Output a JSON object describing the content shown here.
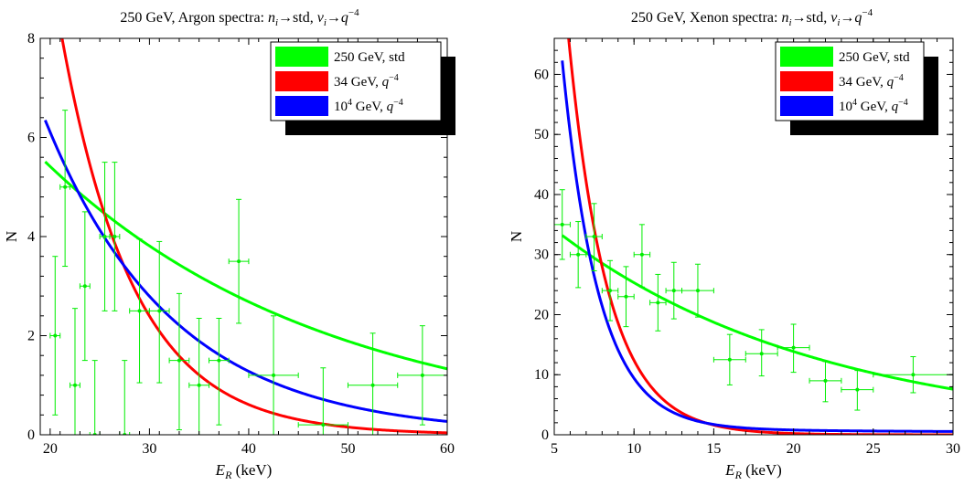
{
  "chart_data": [
    {
      "type": "scatter",
      "title_parts": [
        "250 GeV, Argon spectra: ",
        "n",
        "i",
        "→std, ",
        "ν",
        "i",
        "→",
        "q",
        "−4"
      ],
      "xlabel_main": "E",
      "xlabel_sub": "R",
      "xlabel_unit": " (keV)",
      "ylabel": "N",
      "xlim": [
        19,
        60
      ],
      "ylim": [
        0,
        8
      ],
      "xticks": [
        20,
        30,
        40,
        50,
        60
      ],
      "yticks": [
        0,
        2,
        4,
        6,
        8
      ],
      "legend_position": "top-right",
      "series": [
        {
          "name": "250 GeV, std",
          "name_html": [
            "250 GeV, std",
            "",
            "",
            ""
          ],
          "color": "#00ff00",
          "model": "exp",
          "amp": 5.51,
          "x0": 19.5,
          "decay": 28.5,
          "xmin": 19.5,
          "xmax": 60
        },
        {
          "name": "34 GeV, q−4",
          "name_html": [
            "34 GeV, ",
            "q",
            "−4",
            ""
          ],
          "color": "#ff0000",
          "model": "exp",
          "amp": 8.0,
          "x0": 21.2,
          "decay": 7.3,
          "xmin": 21.2,
          "xmax": 60
        },
        {
          "name": "10⁴ GeV, q−4",
          "name_html": [
            "10",
            "4",
            " GeV, ",
            "q−4"
          ],
          "color": "#0000ff",
          "model": "exp",
          "amp": 6.35,
          "x0": 19.5,
          "decay": 12.8,
          "xmin": 19.5,
          "xmax": 60
        }
      ],
      "points": [
        {
          "x": 20.5,
          "y": 2.0,
          "xerr": 0.5,
          "ylo": 0.4,
          "yhi": 3.6
        },
        {
          "x": 21.5,
          "y": 5.0,
          "xerr": 0.5,
          "ylo": 3.4,
          "yhi": 6.55
        },
        {
          "x": 22.5,
          "y": 1.0,
          "xerr": 0.5,
          "ylo": 0.0,
          "yhi": 2.55
        },
        {
          "x": 23.5,
          "y": 3.0,
          "xerr": 0.5,
          "ylo": 1.5,
          "yhi": 4.5
        },
        {
          "x": 24.5,
          "y": 0.0,
          "xerr": 0.5,
          "ylo": 0.0,
          "yhi": 1.5
        },
        {
          "x": 25.5,
          "y": 4.0,
          "xerr": 0.5,
          "ylo": 2.5,
          "yhi": 5.5
        },
        {
          "x": 26.5,
          "y": 4.0,
          "xerr": 0.5,
          "ylo": 2.5,
          "yhi": 5.5
        },
        {
          "x": 27.5,
          "y": 0.0,
          "xerr": 0.5,
          "ylo": 0.0,
          "yhi": 1.5
        },
        {
          "x": 29.0,
          "y": 2.5,
          "xerr": 1.0,
          "ylo": 1.05,
          "yhi": 3.95
        },
        {
          "x": 31.0,
          "y": 2.5,
          "xerr": 1.0,
          "ylo": 1.05,
          "yhi": 3.9
        },
        {
          "x": 33.0,
          "y": 1.5,
          "xerr": 1.0,
          "ylo": 0.1,
          "yhi": 2.85
        },
        {
          "x": 35.0,
          "y": 1.0,
          "xerr": 1.0,
          "ylo": 0.0,
          "yhi": 2.35
        },
        {
          "x": 37.0,
          "y": 1.5,
          "xerr": 1.0,
          "ylo": 0.2,
          "yhi": 2.35
        },
        {
          "x": 39.0,
          "y": 3.5,
          "xerr": 1.0,
          "ylo": 2.25,
          "yhi": 4.75
        },
        {
          "x": 42.5,
          "y": 1.2,
          "xerr": 2.5,
          "ylo": 0.0,
          "yhi": 2.4
        },
        {
          "x": 47.5,
          "y": 0.2,
          "xerr": 2.5,
          "ylo": 0.0,
          "yhi": 1.35
        },
        {
          "x": 52.5,
          "y": 1.0,
          "xerr": 2.5,
          "ylo": 0.0,
          "yhi": 2.05
        },
        {
          "x": 57.5,
          "y": 1.2,
          "xerr": 2.5,
          "ylo": 0.2,
          "yhi": 2.2
        }
      ]
    },
    {
      "type": "scatter",
      "title_parts": [
        "250 GeV, Xenon spectra: ",
        "n",
        "i",
        "→std, ",
        "ν",
        "i",
        "→",
        "q",
        "−4"
      ],
      "xlabel_main": "E",
      "xlabel_sub": "R",
      "xlabel_unit": " (keV)",
      "ylabel": "N",
      "xlim": [
        5,
        30
      ],
      "ylim": [
        0,
        66
      ],
      "xticks": [
        5,
        10,
        15,
        20,
        25,
        30
      ],
      "yticks": [
        0,
        10,
        20,
        30,
        40,
        50,
        60
      ],
      "legend_position": "top-right",
      "series": [
        {
          "name": "250 GeV, std",
          "name_html": [
            "250 GeV, std",
            "",
            "",
            ""
          ],
          "color": "#00ff00",
          "model": "exp",
          "amp": 33.2,
          "x0": 5.5,
          "decay": 16.6,
          "xmin": 5.5,
          "xmax": 30
        },
        {
          "name": "34 GeV, q−4",
          "name_html": [
            "34 GeV, ",
            "q",
            "−4",
            ""
          ],
          "color": "#ff0000",
          "model": "exp",
          "amp": 66.0,
          "x0": 5.9,
          "decay": 2.45,
          "xmin": 5.9,
          "xmax": 30
        },
        {
          "name": "10⁴ GeV, q−4",
          "name_html": [
            "10",
            "4",
            " GeV, ",
            "q−4"
          ],
          "color": "#0000ff",
          "model": "exp",
          "amp": 62.3,
          "x0": 5.5,
          "decay": 2.3,
          "floor": 1.0,
          "ftail": 0.0,
          "xmin": 5.5,
          "xmax": 30
        }
      ],
      "points": [
        {
          "x": 5.5,
          "y": 35.0,
          "xerr": 0.5,
          "ylo": 29.2,
          "yhi": 40.8
        },
        {
          "x": 6.5,
          "y": 30.0,
          "xerr": 0.5,
          "ylo": 24.5,
          "yhi": 35.5
        },
        {
          "x": 7.5,
          "y": 33.0,
          "xerr": 0.5,
          "ylo": 27.3,
          "yhi": 38.5
        },
        {
          "x": 8.5,
          "y": 24.0,
          "xerr": 0.5,
          "ylo": 19.0,
          "yhi": 29.0
        },
        {
          "x": 9.5,
          "y": 23.0,
          "xerr": 0.5,
          "ylo": 18.0,
          "yhi": 28.0
        },
        {
          "x": 10.5,
          "y": 30.0,
          "xerr": 0.5,
          "ylo": 24.6,
          "yhi": 35.0
        },
        {
          "x": 11.5,
          "y": 22.0,
          "xerr": 0.5,
          "ylo": 17.3,
          "yhi": 26.7
        },
        {
          "x": 12.5,
          "y": 24.0,
          "xerr": 0.5,
          "ylo": 19.3,
          "yhi": 28.7
        },
        {
          "x": 14.0,
          "y": 24.0,
          "xerr": 1.0,
          "ylo": 19.6,
          "yhi": 28.4
        },
        {
          "x": 16.0,
          "y": 12.5,
          "xerr": 1.0,
          "ylo": 8.3,
          "yhi": 16.7
        },
        {
          "x": 18.0,
          "y": 13.5,
          "xerr": 1.0,
          "ylo": 9.8,
          "yhi": 17.5
        },
        {
          "x": 20.0,
          "y": 14.5,
          "xerr": 1.0,
          "ylo": 10.4,
          "yhi": 18.4
        },
        {
          "x": 22.0,
          "y": 9.0,
          "xerr": 1.0,
          "ylo": 5.5,
          "yhi": 12.2
        },
        {
          "x": 24.0,
          "y": 7.5,
          "xerr": 1.0,
          "ylo": 4.1,
          "yhi": 10.7
        },
        {
          "x": 27.5,
          "y": 10.0,
          "xerr": 2.5,
          "ylo": 7.0,
          "yhi": 13.0
        },
        {
          "x": 30.0,
          "y": 7.8,
          "xerr": 0.0,
          "ylo": 7.8,
          "yhi": 7.8
        }
      ]
    }
  ]
}
